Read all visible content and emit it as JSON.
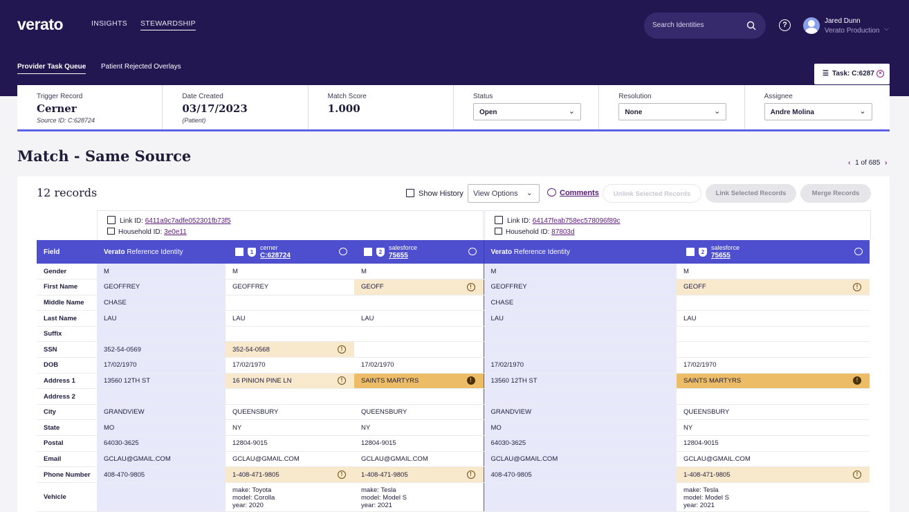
{
  "app": {
    "logo": "verato",
    "nav": [
      {
        "label": "INSIGHTS"
      },
      {
        "label": "STEWARDSHIP"
      }
    ],
    "search_placeholder": "Search Identities",
    "help": "?",
    "user": {
      "name": "Jared Dunn",
      "org": "Verato Production"
    }
  },
  "subnav": {
    "tabs": [
      {
        "label": "Provider Task Queue"
      },
      {
        "label": "Patient Rejected Overlays"
      }
    ],
    "task_label": "Task: C:6287"
  },
  "info": {
    "trigger": {
      "label": "Trigger Record",
      "value": "Cerner",
      "sub": "Source ID: C:628724"
    },
    "date": {
      "label": "Date Created",
      "value": "03/17/2023",
      "sub": "(Patient)"
    },
    "score": {
      "label": "Match Score",
      "value": "1.000"
    },
    "status": {
      "label": "Status",
      "value": "Open"
    },
    "resolution": {
      "label": "Resolution",
      "value": "None"
    },
    "assignee": {
      "label": "Assignee",
      "value": "Andre Molina"
    }
  },
  "page": {
    "title": "Match - Same Source",
    "pager": "1 of 685",
    "prev": "‹",
    "next": "›"
  },
  "toolbar": {
    "records": "12 records",
    "show_history": "Show History",
    "view_options": "View Options",
    "comments": "Comments",
    "unlink": "Unlink Selected Records",
    "link": "Link Selected Records",
    "merge": "Merge Records"
  },
  "groups": [
    {
      "link_label": "Link ID: ",
      "link_id": "6411a9c7adfe052301fb73f5",
      "household_label": "Household ID: ",
      "household_id": "3e0e11"
    },
    {
      "link_label": "Link ID: ",
      "link_id": "64147feab758ec578096f89c",
      "household_label": "Household ID: ",
      "household_id": "87803d"
    }
  ],
  "table": {
    "field_header": "Field",
    "ref_header_bold": "Verato",
    "ref_header_rest": " Reference Identity",
    "sources": [
      {
        "name": "cerner",
        "id": "C:628724",
        "badge": "1"
      },
      {
        "name": "salesforce",
        "id": "75655",
        "badge": "2"
      },
      {
        "name": "salesforce",
        "id": "75655",
        "badge": "2"
      }
    ],
    "rows": [
      {
        "f": "Gender",
        "c": [
          "M",
          "M",
          "M",
          "M",
          "M"
        ]
      },
      {
        "f": "First Name",
        "c": [
          "GEOFFREY",
          "GEOFFREY",
          "GEOFF",
          "GEOFFREY",
          "GEOFF"
        ]
      },
      {
        "f": "Middle Name",
        "c": [
          "CHASE",
          "",
          "",
          "CHASE",
          ""
        ]
      },
      {
        "f": "Last Name",
        "c": [
          "LAU",
          "LAU",
          "LAU",
          "LAU",
          "LAU"
        ]
      },
      {
        "f": "Suffix",
        "c": [
          "",
          "",
          "",
          "",
          ""
        ]
      },
      {
        "f": "SSN",
        "c": [
          "352-54-0569",
          "352-54-0568",
          "",
          "",
          ""
        ]
      },
      {
        "f": "DOB",
        "c": [
          "17/02/1970",
          "17/02/1970",
          "17/02/1970",
          "17/02/1970",
          "17/02/1970"
        ]
      },
      {
        "f": "Address 1",
        "c": [
          "13560 12TH ST",
          "16 PINION PINE LN",
          "SAINTS MARTYRS",
          "13560 12TH ST",
          "SAINTS MARTYRS"
        ]
      },
      {
        "f": "Address 2",
        "c": [
          "",
          "",
          "",
          "",
          ""
        ]
      },
      {
        "f": "City",
        "c": [
          "GRANDVIEW",
          "QUEENSBURY",
          "QUEENSBURY",
          "GRANDVIEW",
          "QUEENSBURY"
        ]
      },
      {
        "f": "State",
        "c": [
          "MO",
          "NY",
          "NY",
          "MO",
          "NY"
        ]
      },
      {
        "f": "Postal",
        "c": [
          "64030-3625",
          "12804-9015",
          "12804-9015",
          "64030-3625",
          "12804-9015"
        ]
      },
      {
        "f": "Email",
        "c": [
          "GCLAU@GMAIL.COM",
          "GCLAU@GMAIL.COM",
          "GCLAU@GMAIL.COM",
          "GCLAU@GMAIL.COM",
          "GCLAU@GMAIL.COM"
        ]
      },
      {
        "f": "Phone Number",
        "c": [
          "408-470-9805",
          "1-408-471-9805",
          "1-408-471-9805",
          "408-470-9805",
          "1-408-471-9805"
        ]
      },
      {
        "f": "Vehicle",
        "c": [
          "",
          "make: Toyota\nmodel: Corolla\nyear: 2020",
          "make: Tesla\nmodel: Model S\nyear: 2021",
          "",
          "make: Tesla\nmodel: Model S\nyear: 2021"
        ]
      }
    ],
    "highlights": {
      "warn": [
        [
          1,
          2
        ],
        [
          1,
          4
        ],
        [
          5,
          1
        ],
        [
          7,
          1
        ],
        [
          13,
          1
        ],
        [
          13,
          2
        ],
        [
          13,
          4
        ]
      ],
      "alert": [
        [
          7,
          2
        ],
        [
          7,
          4
        ]
      ]
    }
  },
  "colors": {
    "header_bg": "#231752",
    "accent": "#4d4fcf",
    "link": "#5a1a7a",
    "warn_bg": "#f9e9cc",
    "alert_bg": "#ecbc66",
    "ref_bg": "#e7e9fb"
  }
}
